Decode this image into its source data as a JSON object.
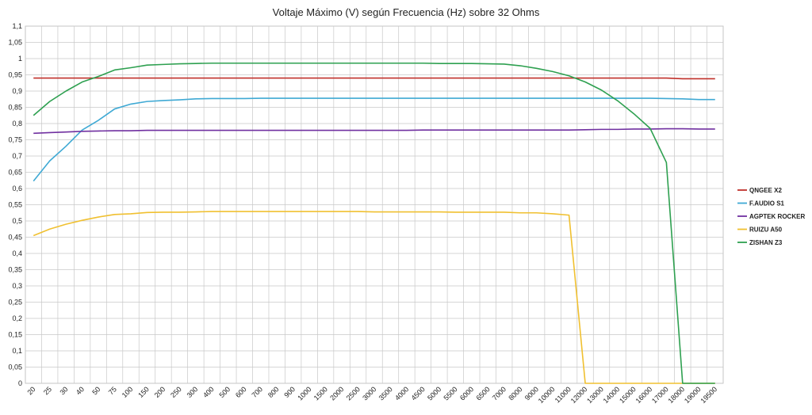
{
  "chart_data": {
    "type": "line",
    "title": "Voltaje Máximo (V) según Frecuencia (Hz) sobre 32 Ohms",
    "xlabel": "",
    "ylabel": "",
    "ylim": [
      0,
      1.1
    ],
    "y_ticks": [
      "0",
      "0,05",
      "0,1",
      "0,15",
      "0,2",
      "0,25",
      "0,3",
      "0,35",
      "0,4",
      "0,45",
      "0,5",
      "0,55",
      "0,6",
      "0,65",
      "0,7",
      "0,75",
      "0,8",
      "0,85",
      "0,9",
      "0,95",
      "1",
      "1,05",
      "1,1"
    ],
    "grid": true,
    "legend_position": "right",
    "categories": [
      "20",
      "25",
      "30",
      "40",
      "50",
      "75",
      "100",
      "150",
      "200",
      "250",
      "300",
      "400",
      "500",
      "600",
      "700",
      "800",
      "900",
      "1000",
      "1500",
      "2000",
      "2500",
      "3000",
      "3500",
      "4000",
      "4500",
      "5000",
      "5500",
      "6000",
      "6500",
      "7000",
      "8000",
      "9000",
      "10000",
      "11000",
      "12000",
      "13000",
      "14000",
      "15000",
      "16000",
      "17000",
      "18000",
      "19000",
      "19500"
    ],
    "series": [
      {
        "name": "QNGEE X2",
        "color": "#c0302a",
        "values": [
          0.94,
          0.94,
          0.94,
          0.94,
          0.94,
          0.94,
          0.94,
          0.94,
          0.94,
          0.94,
          0.94,
          0.94,
          0.94,
          0.94,
          0.94,
          0.94,
          0.94,
          0.94,
          0.94,
          0.94,
          0.94,
          0.94,
          0.94,
          0.94,
          0.94,
          0.94,
          0.94,
          0.94,
          0.94,
          0.94,
          0.94,
          0.94,
          0.94,
          0.94,
          0.94,
          0.94,
          0.94,
          0.94,
          0.94,
          0.94,
          0.938,
          0.938,
          0.938
        ]
      },
      {
        "name": "F.AUDIO S1",
        "color": "#3fa9d4",
        "values": [
          0.623,
          0.685,
          0.73,
          0.78,
          0.81,
          0.845,
          0.86,
          0.868,
          0.871,
          0.873,
          0.876,
          0.877,
          0.877,
          0.877,
          0.878,
          0.878,
          0.878,
          0.878,
          0.878,
          0.878,
          0.878,
          0.878,
          0.878,
          0.878,
          0.878,
          0.878,
          0.878,
          0.878,
          0.878,
          0.878,
          0.878,
          0.878,
          0.878,
          0.878,
          0.878,
          0.878,
          0.878,
          0.878,
          0.878,
          0.877,
          0.876,
          0.874,
          0.874
        ]
      },
      {
        "name": "AGPTEK ROCKER",
        "color": "#7030a0",
        "values": [
          0.77,
          0.772,
          0.774,
          0.776,
          0.777,
          0.778,
          0.778,
          0.779,
          0.779,
          0.779,
          0.779,
          0.779,
          0.779,
          0.779,
          0.779,
          0.779,
          0.779,
          0.779,
          0.779,
          0.779,
          0.779,
          0.779,
          0.779,
          0.779,
          0.78,
          0.78,
          0.78,
          0.78,
          0.78,
          0.78,
          0.78,
          0.78,
          0.78,
          0.78,
          0.781,
          0.782,
          0.782,
          0.783,
          0.783,
          0.784,
          0.784,
          0.783,
          0.783
        ]
      },
      {
        "name": "RUIZU A50",
        "color": "#f0c030",
        "values": [
          0.455,
          0.475,
          0.49,
          0.502,
          0.512,
          0.52,
          0.522,
          0.526,
          0.527,
          0.527,
          0.528,
          0.529,
          0.529,
          0.529,
          0.529,
          0.529,
          0.529,
          0.529,
          0.529,
          0.529,
          0.529,
          0.528,
          0.528,
          0.528,
          0.528,
          0.528,
          0.527,
          0.527,
          0.527,
          0.527,
          0.525,
          0.525,
          0.522,
          0.518,
          0,
          0,
          0,
          0,
          0,
          0,
          0,
          0,
          0
        ]
      },
      {
        "name": "ZISHAN Z3",
        "color": "#2ea050",
        "values": [
          0.825,
          0.868,
          0.9,
          0.928,
          0.945,
          0.965,
          0.972,
          0.98,
          0.982,
          0.984,
          0.985,
          0.986,
          0.986,
          0.986,
          0.986,
          0.986,
          0.986,
          0.986,
          0.986,
          0.986,
          0.986,
          0.986,
          0.986,
          0.986,
          0.986,
          0.985,
          0.985,
          0.985,
          0.984,
          0.983,
          0.978,
          0.97,
          0.96,
          0.947,
          0.928,
          0.903,
          0.87,
          0.83,
          0.785,
          0.68,
          0,
          0,
          0
        ]
      }
    ]
  }
}
